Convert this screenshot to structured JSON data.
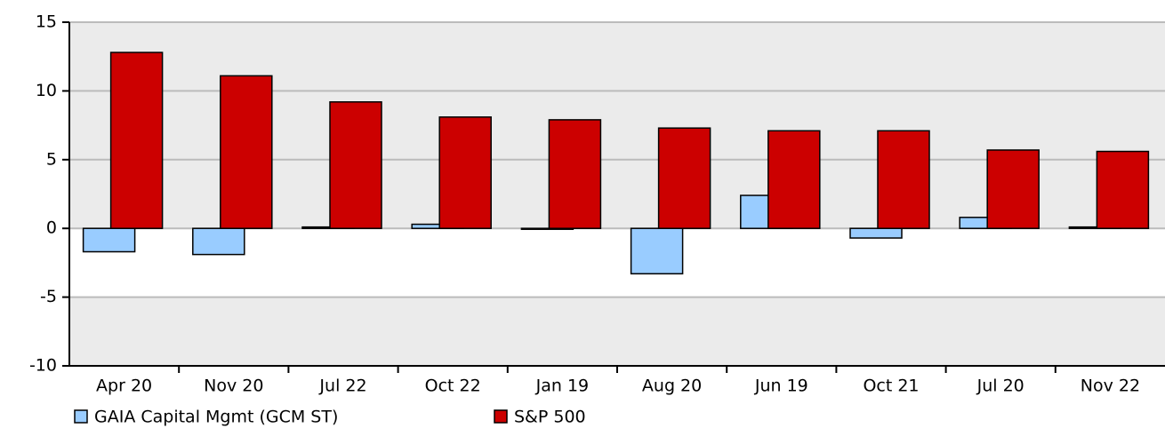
{
  "chart_data": {
    "type": "bar",
    "categories": [
      "Apr 20",
      "Nov 20",
      "Jul 22",
      "Oct 22",
      "Jan 19",
      "Aug 20",
      "Jun 19",
      "Oct 21",
      "Jul 20",
      "Nov 22"
    ],
    "series": [
      {
        "name": "GAIA Capital Mgmt (GCM ST)",
        "color": "#99ccff",
        "values": [
          -1.7,
          -1.9,
          0.1,
          0.3,
          -0.05,
          -3.3,
          2.4,
          -0.7,
          0.8,
          0.1
        ]
      },
      {
        "name": "S&P 500",
        "color": "#cc0000",
        "values": [
          12.8,
          11.1,
          9.2,
          8.1,
          7.9,
          7.3,
          7.1,
          7.1,
          5.7,
          5.6
        ]
      }
    ],
    "ylim": [
      -10,
      15
    ],
    "yticks": [
      -10,
      -5,
      0,
      5,
      10,
      15
    ],
    "grid": true
  }
}
